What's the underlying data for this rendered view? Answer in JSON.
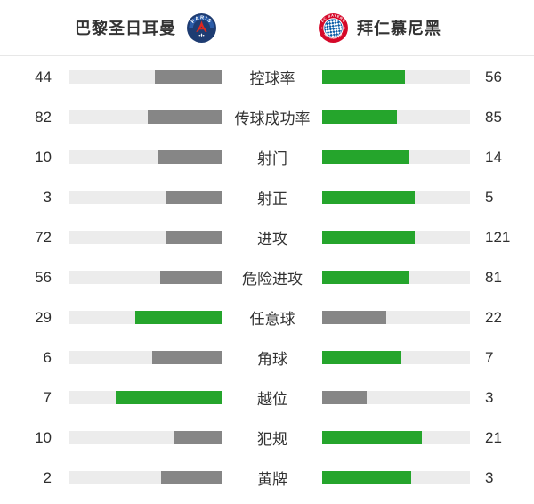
{
  "header": {
    "home_team": {
      "name": "巴黎圣日耳曼",
      "crest": "psg-crest"
    },
    "away_team": {
      "name": "拜仁慕尼黑",
      "crest": "bayern-crest"
    }
  },
  "colors": {
    "win": "#25a52c",
    "lose": "#868686",
    "track": "#ececec",
    "text": "#2e2e2e",
    "divider": "#e7e7e7",
    "psg_navy": "#1e3c72",
    "psg_band_blue": "#2b5ca8",
    "psg_red": "#e0281e",
    "bayern_red": "#d50829",
    "bayern_blue": "#0a5ca8"
  },
  "stats": [
    {
      "label": "控球率",
      "home": 44,
      "away": 56
    },
    {
      "label": "传球成功率",
      "home": 82,
      "away": 85
    },
    {
      "label": "射门",
      "home": 10,
      "away": 14
    },
    {
      "label": "射正",
      "home": 3,
      "away": 5
    },
    {
      "label": "进攻",
      "home": 72,
      "away": 121
    },
    {
      "label": "危险进攻",
      "home": 56,
      "away": 81
    },
    {
      "label": "任意球",
      "home": 29,
      "away": 22
    },
    {
      "label": "角球",
      "home": 6,
      "away": 7
    },
    {
      "label": "越位",
      "home": 7,
      "away": 3
    },
    {
      "label": "犯规",
      "home": 10,
      "away": 21
    },
    {
      "label": "黄牌",
      "home": 2,
      "away": 3
    }
  ],
  "chart_data": {
    "type": "bar",
    "title": "巴黎圣日耳曼 vs 拜仁慕尼黑",
    "orientation": "horizontal-mirrored",
    "categories": [
      "控球率",
      "传球成功率",
      "射门",
      "射正",
      "进攻",
      "危险进攻",
      "任意球",
      "角球",
      "越位",
      "犯规",
      "黄牌"
    ],
    "series": [
      {
        "name": "巴黎圣日耳曼",
        "values": [
          44,
          82,
          10,
          3,
          72,
          56,
          29,
          6,
          7,
          10,
          2
        ]
      },
      {
        "name": "拜仁慕尼黑",
        "values": [
          56,
          85,
          14,
          5,
          121,
          81,
          22,
          7,
          3,
          21,
          3
        ]
      }
    ],
    "xlabel": "",
    "ylabel": "",
    "value_scale": "each pair's fill width = value / (home+away)",
    "highlight_rule": "higher value rendered green (#25a52c), lower gray (#868686)",
    "legend_position": "top (team names with crests)",
    "grid": false
  }
}
